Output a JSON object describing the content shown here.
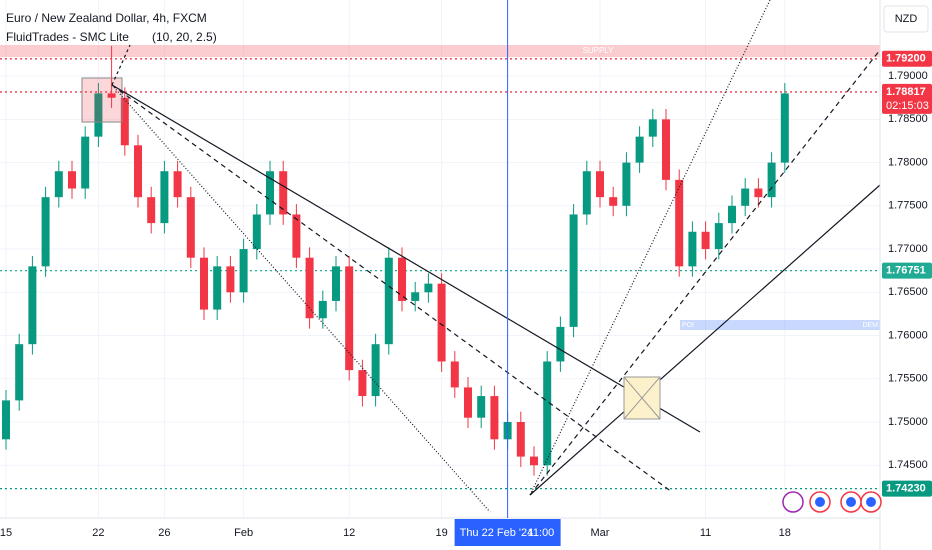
{
  "chart_data": {
    "type": "candlestick",
    "title": "Euro / New Zealand Dollar, 4h, FXCM",
    "indicator": {
      "name": "FluidTrades - SMC Lite",
      "params": "(10, 20, 2.5)"
    },
    "currency": "NZD",
    "zones": {
      "supply": "SUPPLY",
      "poi": "POI",
      "demand": "DEM"
    },
    "categories": [
      "15",
      null,
      null,
      null,
      null,
      null,
      null,
      "22",
      null,
      null,
      null,
      null,
      "26",
      null,
      null,
      null,
      null,
      null,
      "Feb",
      null,
      null,
      null,
      null,
      null,
      null,
      null,
      "12",
      null,
      null,
      null,
      null,
      null,
      null,
      "19",
      null,
      null,
      null,
      null,
      null,
      null,
      null,
      null,
      null,
      null,
      null,
      "Mar",
      null,
      null,
      null,
      null,
      null,
      null,
      null,
      "11",
      null,
      null,
      null,
      null,
      null,
      "18"
    ],
    "open": [
      1.748,
      1.7525,
      1.759,
      1.768,
      1.776,
      1.779,
      1.777,
      1.783,
      1.788,
      1.7875,
      1.782,
      1.776,
      1.773,
      1.779,
      1.776,
      1.769,
      1.763,
      1.768,
      1.765,
      1.77,
      1.774,
      1.779,
      1.774,
      1.769,
      1.762,
      1.764,
      1.768,
      1.756,
      1.753,
      1.759,
      1.769,
      1.764,
      1.765,
      1.766,
      1.757,
      1.754,
      1.7505,
      1.753,
      1.748,
      1.75,
      1.746,
      1.745,
      1.757,
      1.761,
      1.774,
      1.779,
      1.776,
      1.775,
      1.78,
      1.783,
      1.785,
      1.778,
      1.768,
      1.772,
      1.77,
      1.773,
      1.775,
      1.777,
      1.776,
      1.78
    ],
    "high": [
      1.7537,
      1.7602,
      1.7692,
      1.7772,
      1.7802,
      1.7802,
      1.7842,
      1.7892,
      1.7935,
      1.7887,
      1.7832,
      1.7772,
      1.7802,
      1.7802,
      1.7772,
      1.7702,
      1.7692,
      1.7692,
      1.7712,
      1.7752,
      1.7802,
      1.7802,
      1.7752,
      1.7702,
      1.7652,
      1.7692,
      1.7692,
      1.7572,
      1.7602,
      1.7702,
      1.7702,
      1.7662,
      1.7672,
      1.7672,
      1.7582,
      1.7552,
      1.7542,
      1.7542,
      1.7512,
      1.7512,
      1.7472,
      1.7582,
      1.7622,
      1.7752,
      1.7802,
      1.7802,
      1.7772,
      1.7812,
      1.7842,
      1.7862,
      1.7862,
      1.7792,
      1.7732,
      1.7732,
      1.7742,
      1.7762,
      1.7782,
      1.7782,
      1.7812,
      1.7892
    ],
    "low": [
      1.7468,
      1.7513,
      1.7578,
      1.7668,
      1.7748,
      1.7758,
      1.7758,
      1.7818,
      1.7863,
      1.7808,
      1.7748,
      1.7718,
      1.7718,
      1.7748,
      1.7678,
      1.7618,
      1.7618,
      1.7638,
      1.7638,
      1.7688,
      1.7728,
      1.7728,
      1.7678,
      1.7608,
      1.7608,
      1.7628,
      1.7548,
      1.7518,
      1.7518,
      1.7578,
      1.7628,
      1.7628,
      1.7638,
      1.7558,
      1.7528,
      1.7493,
      1.7493,
      1.7468,
      1.7468,
      1.7448,
      1.7438,
      1.7438,
      1.7558,
      1.7598,
      1.7728,
      1.7748,
      1.7738,
      1.7738,
      1.7788,
      1.7818,
      1.7768,
      1.7668,
      1.7668,
      1.7688,
      1.7688,
      1.7718,
      1.7738,
      1.7748,
      1.7748,
      1.7788
    ],
    "close": [
      1.7525,
      1.759,
      1.768,
      1.776,
      1.779,
      1.777,
      1.783,
      1.788,
      1.7875,
      1.782,
      1.776,
      1.773,
      1.779,
      1.776,
      1.769,
      1.763,
      1.768,
      1.765,
      1.77,
      1.774,
      1.779,
      1.774,
      1.769,
      1.762,
      1.764,
      1.768,
      1.756,
      1.753,
      1.759,
      1.769,
      1.764,
      1.765,
      1.766,
      1.757,
      1.754,
      1.7505,
      1.753,
      1.748,
      1.75,
      1.746,
      1.745,
      1.757,
      1.761,
      1.774,
      1.779,
      1.776,
      1.775,
      1.78,
      1.783,
      1.785,
      1.778,
      1.768,
      1.772,
      1.77,
      1.773,
      1.775,
      1.777,
      1.776,
      1.78,
      1.788
    ],
    "up_color": "#089981",
    "down_color": "#f23645",
    "ylim": [
      1.7389,
      1.7988
    ],
    "yticks": [
      {
        "value": 1.745,
        "label": "1.74500"
      },
      {
        "value": 1.75,
        "label": "1.75000"
      },
      {
        "value": 1.755,
        "label": "1.75500"
      },
      {
        "value": 1.76,
        "label": "1.76000"
      },
      {
        "value": 1.765,
        "label": "1.76500"
      },
      {
        "value": 1.77,
        "label": "1.77000"
      },
      {
        "value": 1.775,
        "label": "1.77500"
      },
      {
        "value": 1.78,
        "label": "1.78000"
      },
      {
        "value": 1.785,
        "label": "1.78500"
      },
      {
        "value": 1.79,
        "label": "1.79000"
      }
    ],
    "grid": true,
    "price_tags": [
      {
        "value": 1.792,
        "label": "1.79200",
        "color": "#f23645"
      },
      {
        "value": 1.78817,
        "label": "1.78817",
        "color": "#f23645",
        "countdown": "02:15:03"
      },
      {
        "value": 1.76751,
        "label": "1.76751",
        "color": "#22ab94"
      },
      {
        "value": 1.7423,
        "label": "1.74230",
        "color": "#089981"
      }
    ],
    "crosshair": {
      "index": 38,
      "date": "Thu 22 Feb '24",
      "time": "11:00"
    }
  }
}
